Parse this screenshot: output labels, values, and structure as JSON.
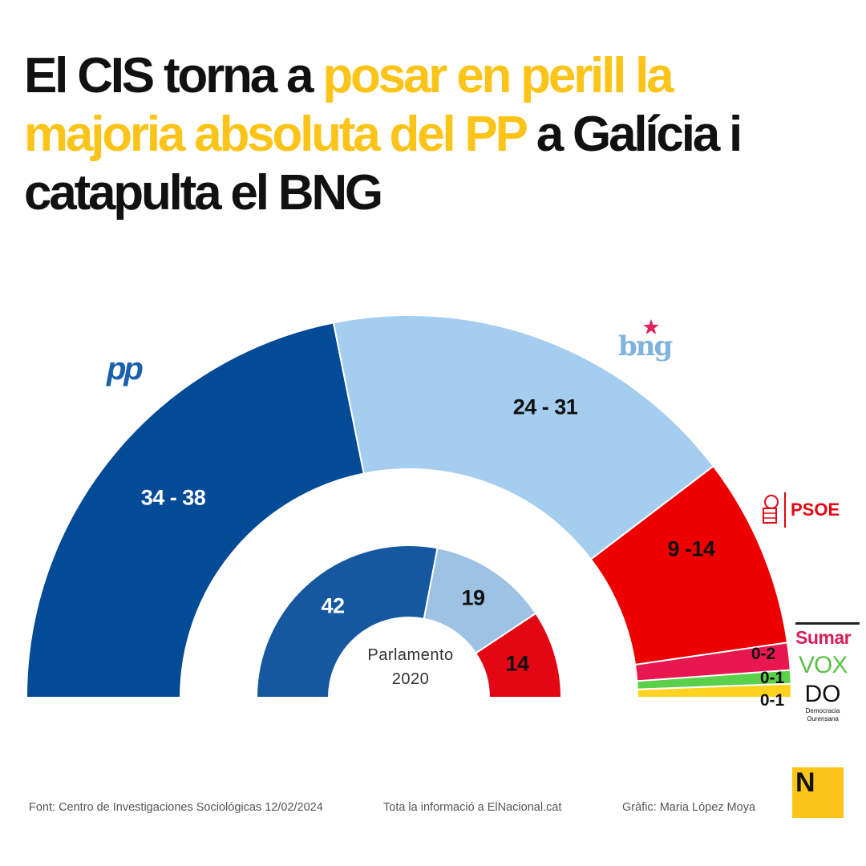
{
  "title": {
    "part1": "El CIS torna a ",
    "highlight": "posar en perill la majoria absoluta del PP",
    "part2": " a Galícia i catapulta el BNG"
  },
  "colors": {
    "accent": "#fcc419",
    "text": "#111111"
  },
  "chart_data": [
    {
      "type": "pie",
      "subtype": "semicircle-donut",
      "categories": [
        "PP",
        "BNG",
        "PSOE",
        "Sumar",
        "VOX",
        "DO"
      ],
      "ranges": [
        [
          34,
          38
        ],
        [
          24,
          31
        ],
        [
          9,
          14
        ],
        [
          0,
          2
        ],
        [
          0,
          1
        ],
        [
          0,
          1
        ]
      ],
      "labels": [
        "34 - 38",
        "24 - 31",
        "9 -14",
        "0-2",
        "0-1",
        "0-1"
      ],
      "colors": [
        "#034a97",
        "#a5cdf0",
        "#ee0000",
        "#e8174f",
        "#5bd04b",
        "#ffd21f"
      ]
    },
    {
      "type": "pie",
      "subtype": "semicircle-donut",
      "title": "Parlamento 2020",
      "title_line1": "Parlamento",
      "title_line2": "2020",
      "categories": [
        "PP",
        "BNG",
        "PSOE"
      ],
      "values": [
        42,
        19,
        14
      ],
      "labels": [
        "42",
        "19",
        "14"
      ],
      "colors": [
        "#1558a0",
        "#9dc2e4",
        "#e30613"
      ]
    }
  ],
  "logos": {
    "pp": "pp",
    "bng": "bng",
    "psoe": "PSOE",
    "sumar": "Sumar",
    "vox": "VOX",
    "do": "DO",
    "do_sub1": "Democracia",
    "do_sub2": "Ourensana"
  },
  "footer": {
    "source": "Font: Centro de Investigaciones Sociológicas 12/02/2024",
    "info": "Tota la informació a ElNacional.cat",
    "credit": "Gràfic: Maria López Moya"
  },
  "brand_logo": "N"
}
